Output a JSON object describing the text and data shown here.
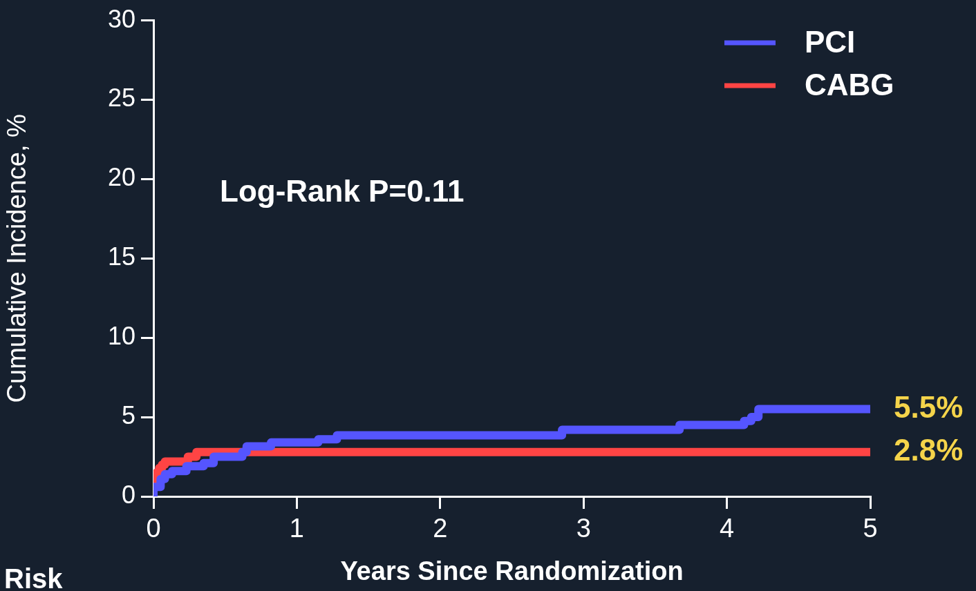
{
  "chart_data": {
    "type": "step",
    "xlabel": "Years Since Randomization",
    "ylabel": "Cumulative Incidence, %",
    "xlim": [
      0,
      5
    ],
    "ylim": [
      0,
      30
    ],
    "xticks": [
      0,
      1,
      2,
      3,
      4,
      5
    ],
    "yticks": [
      0,
      5,
      10,
      15,
      20,
      25,
      30
    ],
    "grid": false,
    "legend": "top right",
    "marker": "none",
    "line_style": "solid",
    "series": [
      {
        "name": "PCI",
        "color": "#5555ff",
        "x": [
          0,
          0.05,
          0.08,
          0.13,
          0.23,
          0.35,
          0.42,
          0.62,
          0.65,
          0.82,
          1.15,
          1.28,
          2.85,
          3.67,
          4.12,
          4.17,
          4.22,
          4.32,
          5
        ],
        "values": [
          0,
          0.6,
          1.1,
          1.4,
          1.6,
          1.9,
          2.1,
          2.5,
          2.8,
          3.15,
          3.4,
          3.6,
          3.85,
          4.2,
          4.5,
          4.75,
          5.0,
          5.5,
          5.5
        ]
      },
      {
        "name": "CABG",
        "color": "#ff4444",
        "x": [
          0,
          0.02,
          0.04,
          0.06,
          0.08,
          0.24,
          0.3,
          2.73,
          5
        ],
        "values": [
          0,
          1.0,
          1.5,
          1.8,
          2.0,
          2.2,
          2.5,
          2.8,
          2.8
        ]
      }
    ],
    "annotations": [
      "Log-Rank P=0.11",
      {
        "text": "5.5%",
        "x": 5,
        "y": 5.5
      },
      {
        "text": "2.8%",
        "x": 5,
        "y": 2.8
      },
      "Risk"
    ]
  }
}
